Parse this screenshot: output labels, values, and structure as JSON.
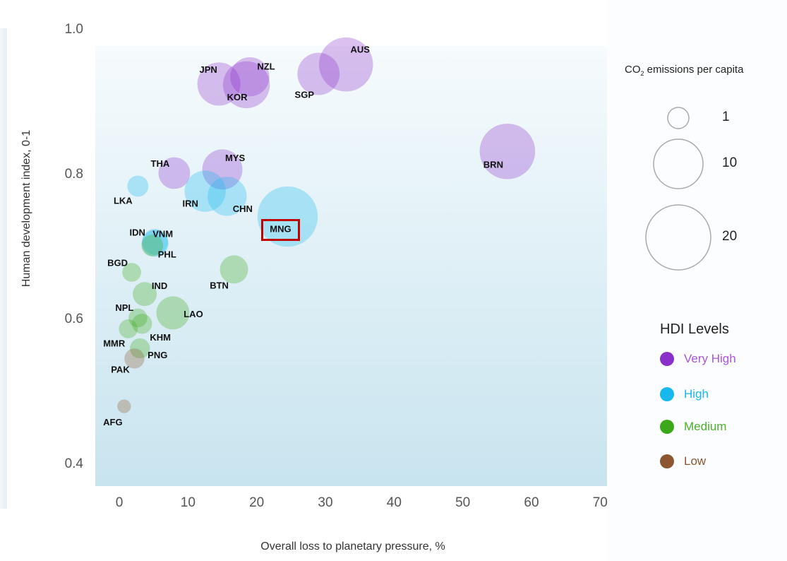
{
  "chart_data": {
    "type": "scatter",
    "xlabel": "Overall loss to planetary pressure, %",
    "ylabel": "Human development index, 0-1",
    "xlim": [
      -3.5,
      71
    ],
    "ylim": [
      0.37,
      1.0
    ],
    "x_ticks": [
      "0",
      "10",
      "20",
      "30",
      "40",
      "50",
      "60",
      "70"
    ],
    "y_ticks": [
      "1.0",
      "0.8",
      "0.6",
      "0.4"
    ],
    "size_legend": {
      "title_main": "CO",
      "title_sub": "2",
      "title_rest": " emissions per capita",
      "entries": [
        {
          "label": "1",
          "value": 1
        },
        {
          "label": "10",
          "value": 10
        },
        {
          "label": "20",
          "value": 20
        }
      ]
    },
    "hdi_legend": {
      "title": "HDI Levels",
      "levels": [
        {
          "name": "Very High",
          "color": "#8b2fc9",
          "text_color": "#a955e0"
        },
        {
          "name": "High",
          "color": "#16b8ee",
          "text_color": "#16b8ee"
        },
        {
          "name": "Medium",
          "color": "#3aa818",
          "text_color": "#4bb02d"
        },
        {
          "name": "Low",
          "color": "#8c5630",
          "text_color": "#8c5630"
        }
      ]
    },
    "highlight": "MNG",
    "points": [
      {
        "code": "AUS",
        "x": 33.0,
        "y": 0.95,
        "co2": 15.5,
        "level": "Very High"
      },
      {
        "code": "SGP",
        "x": 29.0,
        "y": 0.937,
        "co2": 8.5,
        "level": "Very High"
      },
      {
        "code": "NZL",
        "x": 19.0,
        "y": 0.933,
        "co2": 7.0,
        "level": "Very High"
      },
      {
        "code": "JPN",
        "x": 14.5,
        "y": 0.923,
        "co2": 9.0,
        "level": "Very High"
      },
      {
        "code": "KOR",
        "x": 18.5,
        "y": 0.922,
        "co2": 11.0,
        "level": "Very High"
      },
      {
        "code": "BRN",
        "x": 56.5,
        "y": 0.83,
        "co2": 16.5,
        "level": "Very High"
      },
      {
        "code": "MYS",
        "x": 15.0,
        "y": 0.805,
        "co2": 7.5,
        "level": "Very High"
      },
      {
        "code": "THA",
        "x": 8.0,
        "y": 0.8,
        "co2": 4.0,
        "level": "Very High"
      },
      {
        "code": "LKA",
        "x": 2.7,
        "y": 0.782,
        "co2": 1.2,
        "level": "High"
      },
      {
        "code": "IRN",
        "x": 12.5,
        "y": 0.775,
        "co2": 8.0,
        "level": "High"
      },
      {
        "code": "CHN",
        "x": 15.7,
        "y": 0.768,
        "co2": 7.0,
        "level": "High"
      },
      {
        "code": "MNG",
        "x": 24.5,
        "y": 0.74,
        "co2": 20.0,
        "level": "High"
      },
      {
        "code": "IDN",
        "x": 5.2,
        "y": 0.705,
        "co2": 2.3,
        "level": "High"
      },
      {
        "code": "VNM",
        "x": 5.2,
        "y": 0.703,
        "co2": 2.5,
        "level": "High"
      },
      {
        "code": "PHL",
        "x": 4.8,
        "y": 0.7,
        "co2": 1.3,
        "level": "Medium"
      },
      {
        "code": "BTN",
        "x": 16.7,
        "y": 0.667,
        "co2": 2.9,
        "level": "Medium"
      },
      {
        "code": "BGD",
        "x": 1.8,
        "y": 0.663,
        "co2": 0.8,
        "level": "Medium"
      },
      {
        "code": "IND",
        "x": 3.7,
        "y": 0.633,
        "co2": 1.8,
        "level": "Medium"
      },
      {
        "code": "LAO",
        "x": 7.8,
        "y": 0.607,
        "co2": 4.5,
        "level": "Medium"
      },
      {
        "code": "NPL",
        "x": 2.7,
        "y": 0.6,
        "co2": 0.8,
        "level": "Medium"
      },
      {
        "code": "KHM",
        "x": 3.3,
        "y": 0.592,
        "co2": 1.0,
        "level": "Medium"
      },
      {
        "code": "MMR",
        "x": 1.3,
        "y": 0.585,
        "co2": 0.8,
        "level": "Medium"
      },
      {
        "code": "PNG",
        "x": 3.0,
        "y": 0.558,
        "co2": 1.0,
        "level": "Medium"
      },
      {
        "code": "PAK",
        "x": 2.2,
        "y": 0.544,
        "co2": 1.0,
        "level": "Low"
      },
      {
        "code": "AFG",
        "x": 0.7,
        "y": 0.478,
        "co2": 0.2,
        "level": "Low"
      }
    ]
  }
}
